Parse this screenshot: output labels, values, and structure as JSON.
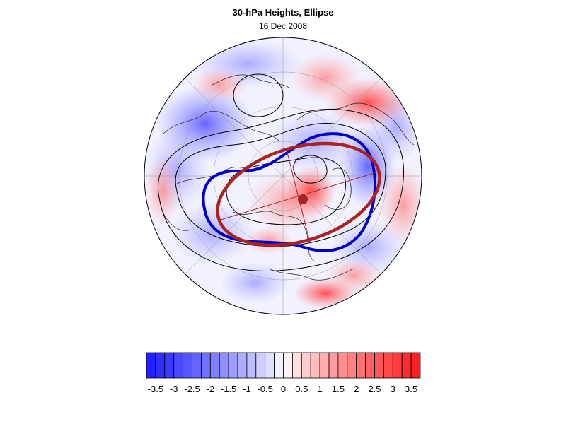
{
  "title": "30-hPa Heights, Ellipse",
  "subtitle": "16 Dec 2008",
  "colorbar": {
    "min": -3.75,
    "max": 3.75,
    "step": 0.25,
    "low_color": "#1a1aff",
    "mid_color": "#ffffff",
    "high_color": "#ff1a1a",
    "tick_labels": [
      "-3.5",
      "-3",
      "-2.5",
      "-2",
      "-1.5",
      "-1",
      "-0.5",
      "0",
      "0.5",
      "1",
      "1.5",
      "2",
      "2.5",
      "3",
      "3.5"
    ],
    "tick_values": [
      -3.5,
      -3,
      -2.5,
      -2,
      -1.5,
      -1,
      -0.5,
      0,
      0.5,
      1,
      1.5,
      2,
      2.5,
      3,
      3.5
    ]
  },
  "map": {
    "projection": "north-polar orthographic",
    "vortex_edge_color": "#0000cc",
    "ellipse_color": "#aa2222",
    "contour_color": "#000000"
  }
}
